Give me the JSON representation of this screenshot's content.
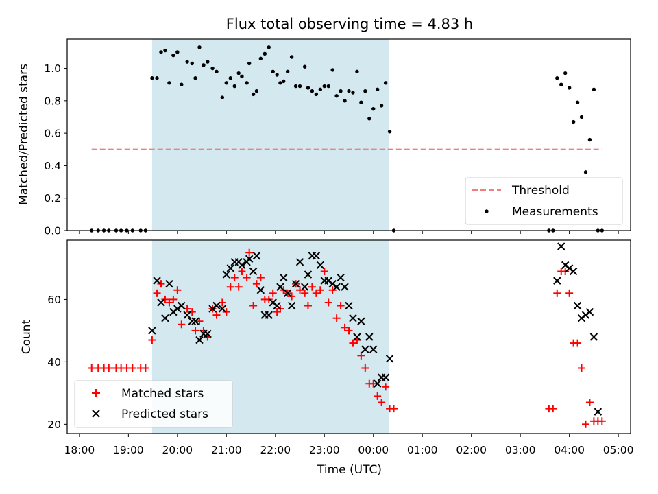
{
  "chart_data": [
    {
      "type": "scatter",
      "title": "Flux total observing time = 4.83 h",
      "xlabel": "",
      "ylabel": "Matched/Predicted stars",
      "x_axis": "time (UTC), hours since 18:00",
      "xlim": [
        17.75,
        29.25
      ],
      "ylim": [
        0,
        1.18
      ],
      "yticks": [
        0.0,
        0.2,
        0.4,
        0.6,
        0.8,
        1.0
      ],
      "ytick_labels": [
        "0.0",
        "0.2",
        "0.4",
        "0.6",
        "0.8",
        "1.0"
      ],
      "shaded_interval": {
        "start": "19:29",
        "end": "00:19",
        "color": "#d4e9ef"
      },
      "threshold": {
        "name": "Threshold",
        "value": 0.5,
        "x_start": "18:15",
        "x_end": "04:40",
        "color": "#f08080",
        "style": "dashed"
      },
      "legend": {
        "position": "lower right",
        "entries": [
          "Threshold",
          "Measurements"
        ]
      },
      "series": [
        {
          "name": "Measurements",
          "marker": "dot",
          "color": "#000000",
          "points": [
            [
              "18:15",
              0
            ],
            [
              "18:23",
              0
            ],
            [
              "18:30",
              0
            ],
            [
              "18:36",
              0
            ],
            [
              "18:45",
              0
            ],
            [
              "18:51",
              0
            ],
            [
              "18:58",
              0
            ],
            [
              "19:05",
              0
            ],
            [
              "19:15",
              0
            ],
            [
              "19:21",
              0
            ],
            [
              "19:29",
              0.94
            ],
            [
              "19:35",
              0.94
            ],
            [
              "19:40",
              1.1
            ],
            [
              "19:45",
              1.11
            ],
            [
              "19:50",
              0.91
            ],
            [
              "19:55",
              1.08
            ],
            [
              "20:00",
              1.1
            ],
            [
              "20:05",
              0.9
            ],
            [
              "20:12",
              1.04
            ],
            [
              "20:18",
              1.03
            ],
            [
              "20:22",
              0.94
            ],
            [
              "20:27",
              1.13
            ],
            [
              "20:32",
              1.02
            ],
            [
              "20:37",
              1.04
            ],
            [
              "20:43",
              1.0
            ],
            [
              "20:48",
              0.98
            ],
            [
              "20:55",
              0.82
            ],
            [
              "21:00",
              0.91
            ],
            [
              "21:05",
              0.94
            ],
            [
              "21:10",
              0.89
            ],
            [
              "21:15",
              0.97
            ],
            [
              "21:19",
              0.95
            ],
            [
              "21:25",
              0.91
            ],
            [
              "21:28",
              1.03
            ],
            [
              "21:33",
              0.84
            ],
            [
              "21:37",
              0.86
            ],
            [
              "21:42",
              1.06
            ],
            [
              "21:47",
              1.09
            ],
            [
              "21:52",
              1.13
            ],
            [
              "21:57",
              0.98
            ],
            [
              "22:02",
              0.96
            ],
            [
              "22:06",
              0.91
            ],
            [
              "22:10",
              0.92
            ],
            [
              "22:15",
              0.98
            ],
            [
              "22:20",
              1.07
            ],
            [
              "22:25",
              0.89
            ],
            [
              "22:30",
              0.89
            ],
            [
              "22:36",
              1.01
            ],
            [
              "22:40",
              0.88
            ],
            [
              "22:45",
              0.86
            ],
            [
              "22:50",
              0.84
            ],
            [
              "22:55",
              0.87
            ],
            [
              "23:00",
              0.89
            ],
            [
              "23:05",
              0.89
            ],
            [
              "23:10",
              0.99
            ],
            [
              "23:15",
              0.83
            ],
            [
              "23:20",
              0.86
            ],
            [
              "23:25",
              0.8
            ],
            [
              "23:30",
              0.86
            ],
            [
              "23:35",
              0.85
            ],
            [
              "23:40",
              0.98
            ],
            [
              "23:45",
              0.79
            ],
            [
              "23:50",
              0.86
            ],
            [
              "23:55",
              0.69
            ],
            [
              "00:00",
              0.75
            ],
            [
              "00:05",
              0.87
            ],
            [
              "00:10",
              0.77
            ],
            [
              "00:15",
              0.91
            ],
            [
              "00:20",
              0.61
            ],
            [
              "00:25",
              0
            ],
            [
              "03:35",
              0
            ],
            [
              "03:40",
              0
            ],
            [
              "03:45",
              0.94
            ],
            [
              "03:50",
              0.9
            ],
            [
              "03:55",
              0.97
            ],
            [
              "04:00",
              0.88
            ],
            [
              "04:05",
              0.67
            ],
            [
              "04:10",
              0.79
            ],
            [
              "04:15",
              0.7
            ],
            [
              "04:20",
              0.36
            ],
            [
              "04:25",
              0.56
            ],
            [
              "04:30",
              0.87
            ],
            [
              "04:35",
              0
            ],
            [
              "04:40",
              0
            ]
          ]
        }
      ]
    },
    {
      "type": "scatter",
      "title": "",
      "xlabel": "Time (UTC)",
      "ylabel": "Count",
      "x_axis": "time (UTC), hours since 18:00",
      "xlim": [
        17.75,
        29.25
      ],
      "ylim": [
        17,
        79
      ],
      "yticks": [
        20,
        40,
        60
      ],
      "ytick_labels": [
        "20",
        "40",
        "60"
      ],
      "xticks": [
        18,
        19,
        20,
        21,
        22,
        23,
        24,
        25,
        26,
        27,
        28,
        29
      ],
      "xtick_labels": [
        "18:00",
        "19:00",
        "20:00",
        "21:00",
        "22:00",
        "23:00",
        "00:00",
        "01:00",
        "02:00",
        "03:00",
        "04:00",
        "05:00"
      ],
      "shaded_interval": {
        "start": "19:29",
        "end": "00:19",
        "color": "#d4e9ef"
      },
      "legend": {
        "position": "lower left",
        "entries": [
          "Matched stars",
          "Predicted stars"
        ]
      },
      "series": [
        {
          "name": "Matched stars",
          "marker": "plus",
          "color": "#ff0000",
          "points": [
            [
              "18:15",
              38
            ],
            [
              "18:23",
              38
            ],
            [
              "18:30",
              38
            ],
            [
              "18:36",
              38
            ],
            [
              "18:45",
              38
            ],
            [
              "18:51",
              38
            ],
            [
              "18:58",
              38
            ],
            [
              "19:05",
              38
            ],
            [
              "19:15",
              38
            ],
            [
              "19:21",
              38
            ],
            [
              "19:29",
              47
            ],
            [
              "19:35",
              62
            ],
            [
              "19:40",
              65
            ],
            [
              "19:45",
              60
            ],
            [
              "19:50",
              59
            ],
            [
              "19:55",
              60
            ],
            [
              "20:00",
              63
            ],
            [
              "20:05",
              52
            ],
            [
              "20:12",
              57
            ],
            [
              "20:18",
              56
            ],
            [
              "20:22",
              50
            ],
            [
              "20:27",
              53
            ],
            [
              "20:32",
              50
            ],
            [
              "20:37",
              48
            ],
            [
              "20:43",
              57
            ],
            [
              "20:48",
              55
            ],
            [
              "20:55",
              59
            ],
            [
              "21:00",
              56
            ],
            [
              "21:05",
              64
            ],
            [
              "21:10",
              67
            ],
            [
              "21:15",
              64
            ],
            [
              "21:19",
              69
            ],
            [
              "21:25",
              67
            ],
            [
              "21:28",
              75
            ],
            [
              "21:33",
              58
            ],
            [
              "21:37",
              65
            ],
            [
              "21:42",
              67
            ],
            [
              "21:47",
              60
            ],
            [
              "21:52",
              60
            ],
            [
              "21:57",
              62
            ],
            [
              "22:02",
              56
            ],
            [
              "22:06",
              57
            ],
            [
              "22:10",
              63
            ],
            [
              "22:15",
              62
            ],
            [
              "22:20",
              61
            ],
            [
              "22:25",
              65
            ],
            [
              "22:30",
              63
            ],
            [
              "22:36",
              62
            ],
            [
              "22:40",
              58
            ],
            [
              "22:45",
              64
            ],
            [
              "22:50",
              62
            ],
            [
              "22:55",
              63
            ],
            [
              "23:00",
              69
            ],
            [
              "23:05",
              59
            ],
            [
              "23:10",
              63
            ],
            [
              "23:15",
              54
            ],
            [
              "23:20",
              58
            ],
            [
              "23:25",
              51
            ],
            [
              "23:30",
              50
            ],
            [
              "23:35",
              46
            ],
            [
              "23:40",
              47
            ],
            [
              "23:45",
              42
            ],
            [
              "23:50",
              38
            ],
            [
              "23:55",
              33
            ],
            [
              "00:00",
              33
            ],
            [
              "00:05",
              29
            ],
            [
              "00:10",
              27
            ],
            [
              "00:15",
              32
            ],
            [
              "00:20",
              25
            ],
            [
              "00:25",
              25
            ],
            [
              "03:35",
              25
            ],
            [
              "03:40",
              25
            ],
            [
              "03:45",
              62
            ],
            [
              "03:50",
              69
            ],
            [
              "03:55",
              69
            ],
            [
              "04:00",
              62
            ],
            [
              "04:05",
              46
            ],
            [
              "04:10",
              46
            ],
            [
              "04:15",
              38
            ],
            [
              "04:20",
              20
            ],
            [
              "04:25",
              27
            ],
            [
              "04:30",
              21
            ],
            [
              "04:35",
              21
            ],
            [
              "04:40",
              21
            ]
          ]
        },
        {
          "name": "Predicted stars",
          "marker": "x",
          "color": "#000000",
          "points": [
            [
              "19:29",
              50
            ],
            [
              "19:35",
              66
            ],
            [
              "19:40",
              59
            ],
            [
              "19:45",
              54
            ],
            [
              "19:50",
              65
            ],
            [
              "19:55",
              56
            ],
            [
              "20:00",
              57
            ],
            [
              "20:05",
              58
            ],
            [
              "20:12",
              55
            ],
            [
              "20:18",
              53
            ],
            [
              "20:22",
              53
            ],
            [
              "20:27",
              47
            ],
            [
              "20:32",
              49
            ],
            [
              "20:37",
              49
            ],
            [
              "20:43",
              57
            ],
            [
              "20:48",
              58
            ],
            [
              "20:55",
              57
            ],
            [
              "21:00",
              68
            ],
            [
              "21:05",
              70
            ],
            [
              "21:10",
              72
            ],
            [
              "21:15",
              72
            ],
            [
              "21:19",
              71
            ],
            [
              "21:25",
              72
            ],
            [
              "21:28",
              73
            ],
            [
              "21:33",
              69
            ],
            [
              "21:37",
              74
            ],
            [
              "21:42",
              63
            ],
            [
              "21:47",
              55
            ],
            [
              "21:52",
              55
            ],
            [
              "21:57",
              59
            ],
            [
              "22:02",
              58
            ],
            [
              "22:06",
              64
            ],
            [
              "22:10",
              67
            ],
            [
              "22:15",
              62
            ],
            [
              "22:20",
              58
            ],
            [
              "22:25",
              65
            ],
            [
              "22:30",
              72
            ],
            [
              "22:36",
              64
            ],
            [
              "22:40",
              68
            ],
            [
              "22:45",
              74
            ],
            [
              "22:50",
              74
            ],
            [
              "22:55",
              71
            ],
            [
              "23:00",
              66
            ],
            [
              "23:05",
              66
            ],
            [
              "23:10",
              65
            ],
            [
              "23:15",
              64
            ],
            [
              "23:20",
              67
            ],
            [
              "23:25",
              64
            ],
            [
              "23:30",
              58
            ],
            [
              "23:35",
              54
            ],
            [
              "23:40",
              48
            ],
            [
              "23:45",
              53
            ],
            [
              "23:50",
              44
            ],
            [
              "23:55",
              48
            ],
            [
              "00:00",
              44
            ],
            [
              "00:05",
              33
            ],
            [
              "00:10",
              35
            ],
            [
              "00:15",
              35
            ],
            [
              "00:20",
              41
            ],
            [
              "03:45",
              66
            ],
            [
              "03:50",
              77
            ],
            [
              "03:55",
              71
            ],
            [
              "04:00",
              70
            ],
            [
              "04:05",
              69
            ],
            [
              "04:10",
              58
            ],
            [
              "04:15",
              54
            ],
            [
              "04:20",
              55
            ],
            [
              "04:25",
              56
            ],
            [
              "04:30",
              48
            ],
            [
              "04:35",
              24
            ]
          ]
        }
      ]
    }
  ]
}
